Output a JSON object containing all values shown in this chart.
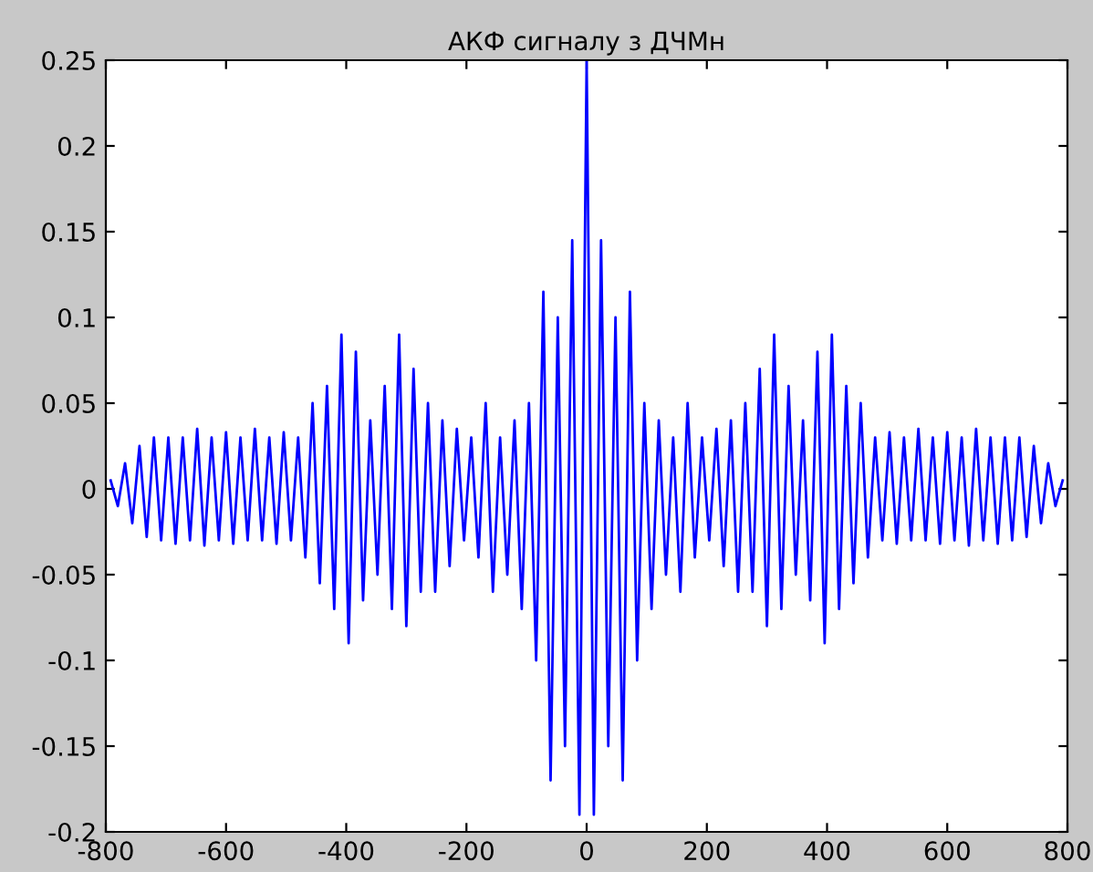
{
  "chart_data": {
    "type": "line",
    "title": "АКФ сигналу з ДЧМн",
    "x": [
      -792,
      -780,
      -768,
      -756,
      -744,
      -732,
      -720,
      -708,
      -696,
      -684,
      -672,
      -660,
      -648,
      -636,
      -624,
      -612,
      -600,
      -588,
      -576,
      -564,
      -552,
      -540,
      -528,
      -516,
      -504,
      -492,
      -480,
      -468,
      -456,
      -444,
      -432,
      -420,
      -408,
      -396,
      -384,
      -372,
      -360,
      -348,
      -336,
      -324,
      -312,
      -300,
      -288,
      -276,
      -264,
      -252,
      -240,
      -228,
      -216,
      -204,
      -192,
      -180,
      -168,
      -156,
      -144,
      -132,
      -120,
      -108,
      -96,
      -84,
      -72,
      -60,
      -48,
      -36,
      -24,
      -12,
      0,
      12,
      24,
      36,
      48,
      60,
      72,
      84,
      96,
      108,
      120,
      132,
      144,
      156,
      168,
      180,
      192,
      204,
      216,
      228,
      240,
      252,
      264,
      276,
      288,
      300,
      312,
      324,
      336,
      348,
      360,
      372,
      384,
      396,
      408,
      420,
      432,
      444,
      456,
      468,
      480,
      492,
      504,
      516,
      528,
      540,
      552,
      564,
      576,
      588,
      600,
      612,
      624,
      636,
      648,
      660,
      672,
      684,
      696,
      708,
      720,
      732,
      744,
      756,
      768,
      780,
      792
    ],
    "series": [
      {
        "color": "#0000ff",
        "values": [
          0.005,
          -0.01,
          0.015,
          -0.02,
          0.025,
          -0.028,
          0.03,
          -0.03,
          0.03,
          -0.032,
          0.03,
          -0.03,
          0.035,
          -0.033,
          0.03,
          -0.03,
          0.033,
          -0.032,
          0.03,
          -0.03,
          0.035,
          -0.03,
          0.03,
          -0.032,
          0.033,
          -0.03,
          0.03,
          -0.04,
          0.05,
          -0.055,
          0.06,
          -0.07,
          0.09,
          -0.09,
          0.08,
          -0.065,
          0.04,
          -0.05,
          0.06,
          -0.07,
          0.09,
          -0.08,
          0.07,
          -0.06,
          0.05,
          -0.06,
          0.04,
          -0.045,
          0.035,
          -0.03,
          0.03,
          -0.04,
          0.05,
          -0.06,
          0.03,
          -0.05,
          0.04,
          -0.07,
          0.05,
          -0.1,
          0.115,
          -0.17,
          0.1,
          -0.15,
          0.145,
          -0.19,
          0.25,
          -0.19,
          0.145,
          -0.15,
          0.1,
          -0.17,
          0.115,
          -0.1,
          0.05,
          -0.07,
          0.04,
          -0.05,
          0.03,
          -0.06,
          0.05,
          -0.04,
          0.03,
          -0.03,
          0.035,
          -0.045,
          0.04,
          -0.06,
          0.05,
          -0.06,
          0.07,
          -0.08,
          0.09,
          -0.07,
          0.06,
          -0.05,
          0.04,
          -0.065,
          0.08,
          -0.09,
          0.09,
          -0.07,
          0.06,
          -0.055,
          0.05,
          -0.04,
          0.03,
          -0.03,
          0.033,
          -0.032,
          0.03,
          -0.03,
          0.035,
          -0.03,
          0.03,
          -0.032,
          0.033,
          -0.03,
          0.03,
          -0.033,
          0.035,
          -0.03,
          0.03,
          -0.032,
          0.03,
          -0.03,
          0.03,
          -0.028,
          0.025,
          -0.02,
          0.015,
          -0.01,
          0.005
        ]
      }
    ],
    "xlim": [
      -800,
      800
    ],
    "xticks": [
      -800,
      -600,
      -400,
      -200,
      0,
      200,
      400,
      600,
      800
    ],
    "ylim": [
      -0.2,
      0.25
    ],
    "yticks": [
      -0.2,
      -0.15,
      -0.1,
      -0.05,
      0,
      0.05,
      0.1,
      0.15,
      0.2,
      0.25
    ],
    "grid": false
  }
}
